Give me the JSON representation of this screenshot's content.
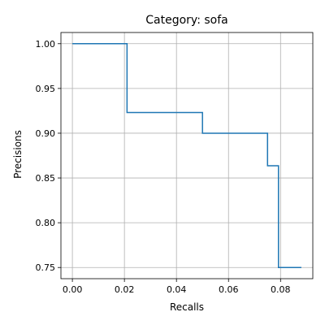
{
  "chart_data": {
    "type": "line",
    "title": "Category: sofa",
    "xlabel": "Recalls",
    "ylabel": "Precisions",
    "xlim": [
      -0.0044,
      0.0924
    ],
    "ylim": [
      0.7375,
      1.0125
    ],
    "xticks": [
      0.0,
      0.02,
      0.04,
      0.06,
      0.08
    ],
    "xtick_labels": [
      "0.00",
      "0.02",
      "0.04",
      "0.06",
      "0.08"
    ],
    "yticks": [
      0.75,
      0.8,
      0.85,
      0.9,
      0.95,
      1.0
    ],
    "ytick_labels": [
      "0.75",
      "0.80",
      "0.85",
      "0.90",
      "0.95",
      "1.00"
    ],
    "grid": true,
    "series": [
      {
        "color": "#1f77b4",
        "x": [
          0.0,
          0.021,
          0.021,
          0.05,
          0.05,
          0.075,
          0.075,
          0.0792,
          0.0792,
          0.088
        ],
        "y": [
          1.0,
          1.0,
          0.9231,
          0.9231,
          0.9,
          0.9,
          0.8636,
          0.8636,
          0.75,
          0.75
        ]
      }
    ]
  }
}
